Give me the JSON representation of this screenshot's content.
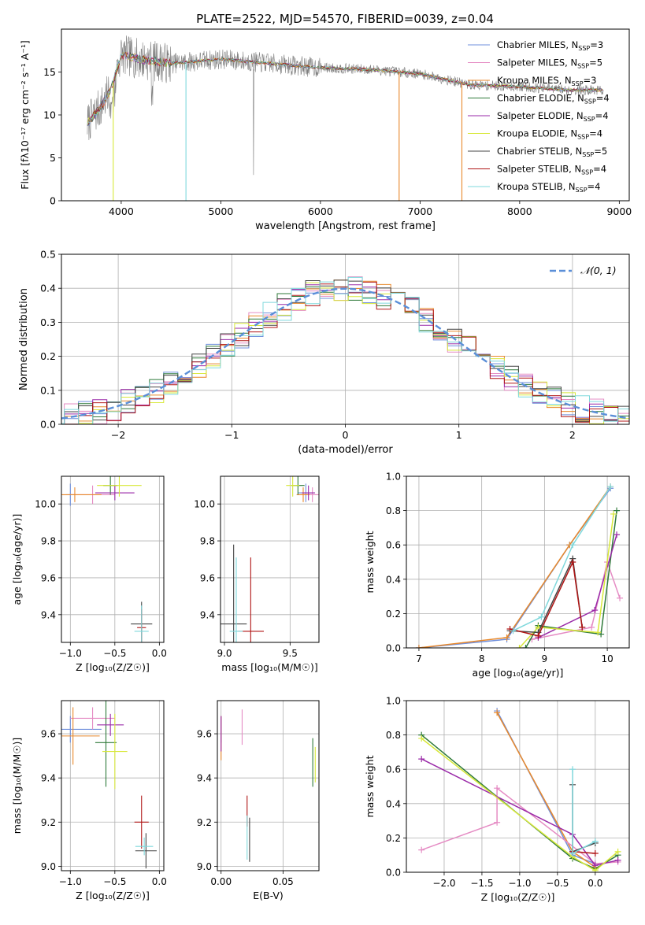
{
  "figure": {
    "title": "PLATE=2522, MJD=54570, FIBERID=0039, z=0.04"
  },
  "models": [
    {
      "name": "Chabrier MILES, N",
      "sub": "SSP",
      "suffix": "=3",
      "color": "#6f8fdc"
    },
    {
      "name": "Salpeter MILES, N",
      "sub": "SSP",
      "suffix": "=5",
      "color": "#e58cc4"
    },
    {
      "name": "Kroupa MILES, N",
      "sub": "SSP",
      "suffix": "=3",
      "color": "#e8892c"
    },
    {
      "name": "Chabrier ELODIE, N",
      "sub": "SSP",
      "suffix": "=4",
      "color": "#2f7a3a"
    },
    {
      "name": "Salpeter ELODIE, N",
      "sub": "SSP",
      "suffix": "=4",
      "color": "#9a2aa8"
    },
    {
      "name": "Kroupa ELODIE, N",
      "sub": "SSP",
      "suffix": "=4",
      "color": "#d8e83a"
    },
    {
      "name": "Chabrier STELIB, N",
      "sub": "SSP",
      "suffix": "=5",
      "color": "#444444"
    },
    {
      "name": "Salpeter STELIB, N",
      "sub": "SSP",
      "suffix": "=4",
      "color": "#b01515"
    },
    {
      "name": "Kroupa STELIB, N",
      "sub": "SSP",
      "suffix": "=4",
      "color": "#7fd8dc"
    }
  ],
  "chart_data": [
    {
      "id": "spectrum",
      "type": "line",
      "xlabel": "wavelength [Angstrom, rest frame]",
      "ylabel": "Flux [f",
      "ylabel_full": "Flux [fλ10⁻¹⁷ erg cm⁻² s⁻¹ A⁻¹]",
      "xlim": [
        3400,
        9100
      ],
      "ylim": [
        0,
        20
      ],
      "xticks": [
        4000,
        5000,
        6000,
        7000,
        8000,
        9000
      ],
      "yticks": [
        0,
        5,
        10,
        15
      ],
      "grid": false,
      "legend": "top-right",
      "x_start": 3660,
      "x_end": 8840,
      "series_envelope": [
        {
          "x": 3660,
          "y": 9
        },
        {
          "x": 3800,
          "y": 11
        },
        {
          "x": 3900,
          "y": 13
        },
        {
          "x": 4000,
          "y": 17
        },
        {
          "x": 4200,
          "y": 16.5
        },
        {
          "x": 4500,
          "y": 16
        },
        {
          "x": 5000,
          "y": 16.5
        },
        {
          "x": 5500,
          "y": 16
        },
        {
          "x": 6000,
          "y": 15.5
        },
        {
          "x": 6500,
          "y": 15.3
        },
        {
          "x": 7000,
          "y": 14.8
        },
        {
          "x": 7500,
          "y": 13.5
        },
        {
          "x": 8000,
          "y": 13.3
        },
        {
          "x": 8500,
          "y": 12.9
        },
        {
          "x": 8840,
          "y": 12.9
        }
      ]
    },
    {
      "id": "residuals",
      "type": "histogram",
      "xlabel": "(data-model)/error",
      "ylabel": "Normed distribution",
      "xlim": [
        -2.5,
        2.5
      ],
      "ylim": [
        0,
        0.5
      ],
      "xticks": [
        -2,
        -1,
        0,
        1,
        2
      ],
      "yticks": [
        0,
        0.1,
        0.2,
        0.3,
        0.4,
        0.5
      ],
      "grid": true,
      "legend": "top-right",
      "reference_label": "𝒩(0, 1)",
      "reference_color": "#5b8fd8",
      "bin_width": 0.125
    },
    {
      "id": "age-vs-Z",
      "type": "scatter",
      "xlabel": "Z [log₁₀(Z/Z☉)]",
      "ylabel": "age  [log₁₀(age/yr)]",
      "xlim": [
        -1.1,
        0.05
      ],
      "ylim": [
        9.25,
        10.15
      ],
      "xticks": [
        -1.0,
        -0.5,
        0.0
      ],
      "yticks": [
        9.4,
        9.6,
        9.8,
        10.0
      ],
      "grid": true,
      "points": [
        {
          "m": 0,
          "x": -1.0,
          "y": 10.05,
          "xerr": 0.05,
          "yerr": 0.06
        },
        {
          "m": 1,
          "x": -0.75,
          "y": 10.05,
          "xerr": 0.25,
          "yerr": 0.05
        },
        {
          "m": 2,
          "x": -0.95,
          "y": 10.05,
          "xerr": 0.3,
          "yerr": 0.04
        },
        {
          "m": 3,
          "x": -0.55,
          "y": 10.1,
          "xerr": 0.08,
          "yerr": 0.05
        },
        {
          "m": 4,
          "x": -0.5,
          "y": 10.06,
          "xerr": 0.22,
          "yerr": 0.04
        },
        {
          "m": 5,
          "x": -0.45,
          "y": 10.1,
          "xerr": 0.25,
          "yerr": 0.06
        },
        {
          "m": 6,
          "x": -0.2,
          "y": 9.35,
          "xerr": 0.12,
          "yerr": 0.12
        },
        {
          "m": 7,
          "x": -0.2,
          "y": 9.33,
          "xerr": 0.05,
          "yerr": 0.1
        },
        {
          "m": 8,
          "x": -0.2,
          "y": 9.31,
          "xerr": 0.08,
          "yerr": 0.14
        }
      ]
    },
    {
      "id": "age-vs-mass",
      "type": "scatter",
      "xlabel": "mass [log₁₀(M/M☉)]",
      "ylabel": "",
      "xlim": [
        8.97,
        9.72
      ],
      "ylim": [
        9.25,
        10.15
      ],
      "xticks": [
        9.0,
        9.5
      ],
      "yticks": [
        9.4,
        9.6,
        9.8,
        10.0
      ],
      "grid": true,
      "points": [
        {
          "m": 0,
          "x": 9.62,
          "y": 10.06,
          "xerr": 0.06,
          "yerr": 0.05
        },
        {
          "m": 1,
          "x": 9.67,
          "y": 10.05,
          "xerr": 0.08,
          "yerr": 0.04
        },
        {
          "m": 2,
          "x": 9.6,
          "y": 10.05,
          "xerr": 0.05,
          "yerr": 0.04
        },
        {
          "m": 3,
          "x": 9.56,
          "y": 10.1,
          "xerr": 0.05,
          "yerr": 0.05
        },
        {
          "m": 4,
          "x": 9.64,
          "y": 10.06,
          "xerr": 0.05,
          "yerr": 0.04
        },
        {
          "m": 5,
          "x": 9.52,
          "y": 10.1,
          "xerr": 0.05,
          "yerr": 0.06
        },
        {
          "m": 6,
          "x": 9.07,
          "y": 9.35,
          "xerr": 0.1,
          "yerr": 0.43
        },
        {
          "m": 7,
          "x": 9.2,
          "y": 9.31,
          "xerr": 0.1,
          "yerr": 0.4
        },
        {
          "m": 8,
          "x": 9.09,
          "y": 9.31,
          "xerr": 0.05,
          "yerr": 0.4
        }
      ]
    },
    {
      "id": "massweight-vs-age",
      "type": "line",
      "xlabel": "age  [log₁₀(age/yr)]",
      "ylabel": "mass weight",
      "xlim": [
        6.8,
        10.35
      ],
      "ylim": [
        0,
        1.0
      ],
      "xticks": [
        7,
        8,
        9,
        10
      ],
      "yticks": [
        0,
        0.2,
        0.4,
        0.6,
        0.8,
        1.0
      ],
      "grid": true,
      "series": [
        {
          "m": 0,
          "x": [
            7.0,
            8.4,
            9.4,
            10.05
          ],
          "y": [
            0.0,
            0.05,
            0.6,
            0.93
          ]
        },
        {
          "m": 2,
          "x": [
            7.0,
            8.4,
            9.4,
            10.05
          ],
          "y": [
            0.0,
            0.06,
            0.6,
            0.94
          ]
        },
        {
          "m": 1,
          "x": [
            8.8,
            9.75,
            10.0,
            10.2
          ],
          "y": [
            0.05,
            0.12,
            0.5,
            0.29
          ]
        },
        {
          "m": 3,
          "x": [
            8.7,
            8.9,
            9.9,
            10.15
          ],
          "y": [
            0.0,
            0.13,
            0.08,
            0.8
          ]
        },
        {
          "m": 4,
          "x": [
            8.9,
            9.8,
            10.15
          ],
          "y": [
            0.06,
            0.22,
            0.66
          ]
        },
        {
          "m": 5,
          "x": [
            8.6,
            8.9,
            9.85,
            10.1
          ],
          "y": [
            0.0,
            0.12,
            0.09,
            0.78
          ]
        },
        {
          "m": 6,
          "x": [
            8.45,
            8.9,
            9.45,
            9.6
          ],
          "y": [
            0.1,
            0.09,
            0.52,
            0.12
          ]
        },
        {
          "m": 7,
          "x": [
            8.45,
            8.9,
            9.45,
            9.6
          ],
          "y": [
            0.11,
            0.07,
            0.5,
            0.12
          ]
        },
        {
          "m": 8,
          "x": [
            8.5,
            8.95,
            9.45,
            10.05
          ],
          "y": [
            0.1,
            0.18,
            0.6,
            0.94
          ]
        }
      ]
    },
    {
      "id": "mass-vs-Z",
      "type": "scatter",
      "xlabel": "Z [log₁₀(Z/Z☉)]",
      "ylabel": "mass [log₁₀(M/M☉)]",
      "xlim": [
        -1.1,
        0.05
      ],
      "ylim": [
        8.98,
        9.75
      ],
      "xticks": [
        -1.0,
        -0.5,
        0.0
      ],
      "yticks": [
        9.0,
        9.2,
        9.4,
        9.6
      ],
      "grid": true,
      "points": [
        {
          "m": 0,
          "x": -1.0,
          "y": 9.62,
          "xerr": 0.35,
          "yerr": 0.06
        },
        {
          "m": 1,
          "x": -0.75,
          "y": 9.67,
          "xerr": 0.25,
          "yerr": 0.05
        },
        {
          "m": 2,
          "x": -0.97,
          "y": 9.59,
          "xerr": 0.3,
          "yerr": 0.13
        },
        {
          "m": 3,
          "x": -0.6,
          "y": 9.56,
          "xerr": 0.12,
          "yerr": 0.2
        },
        {
          "m": 4,
          "x": -0.55,
          "y": 9.64,
          "xerr": 0.15,
          "yerr": 0.05
        },
        {
          "m": 5,
          "x": -0.5,
          "y": 9.52,
          "xerr": 0.14,
          "yerr": 0.17
        },
        {
          "m": 6,
          "x": -0.15,
          "y": 9.07,
          "xerr": 0.12,
          "yerr": 0.08
        },
        {
          "m": 7,
          "x": -0.2,
          "y": 9.2,
          "xerr": 0.08,
          "yerr": 0.12
        },
        {
          "m": 8,
          "x": -0.17,
          "y": 9.09,
          "xerr": 0.1,
          "yerr": 0.04
        }
      ]
    },
    {
      "id": "mass-vs-EBV",
      "type": "scatter",
      "xlabel": "E(B-V)",
      "ylabel": "",
      "xlim": [
        -0.003,
        0.079
      ],
      "ylim": [
        8.98,
        9.75
      ],
      "xticks": [
        0.0,
        0.05
      ],
      "yticks": [
        9.0,
        9.2,
        9.4,
        9.6
      ],
      "grid": true,
      "points": [
        {
          "m": 0,
          "x": 0.0,
          "y": 9.62,
          "xerr": 0,
          "yerr": 0.06
        },
        {
          "m": 1,
          "x": 0.017,
          "y": 9.63,
          "xerr": 0,
          "yerr": 0.08
        },
        {
          "m": 2,
          "x": 0.0,
          "y": 9.58,
          "xerr": 0,
          "yerr": 0.1
        },
        {
          "m": 3,
          "x": 0.074,
          "y": 9.47,
          "xerr": 0,
          "yerr": 0.11
        },
        {
          "m": 4,
          "x": 0.0,
          "y": 9.6,
          "xerr": 0,
          "yerr": 0.08
        },
        {
          "m": 5,
          "x": 0.076,
          "y": 9.46,
          "xerr": 0,
          "yerr": 0.08
        },
        {
          "m": 6,
          "x": 0.023,
          "y": 9.12,
          "xerr": 0,
          "yerr": 0.1
        },
        {
          "m": 7,
          "x": 0.021,
          "y": 9.25,
          "xerr": 0,
          "yerr": 0.07
        },
        {
          "m": 8,
          "x": 0.021,
          "y": 9.13,
          "xerr": 0,
          "yerr": 0.1
        }
      ]
    },
    {
      "id": "massweight-vs-Z",
      "type": "line",
      "xlabel": "Z [log₁₀(Z/Z☉)]",
      "ylabel": "mass weight",
      "xlim": [
        -2.5,
        0.45
      ],
      "ylim": [
        0,
        1.0
      ],
      "xticks": [
        -2.0,
        -1.5,
        -1.0,
        -0.5,
        0.0
      ],
      "yticks": [
        0,
        0.2,
        0.4,
        0.6,
        0.8,
        1.0
      ],
      "grid": true,
      "series": [
        {
          "m": 0,
          "x": [
            -1.3,
            -0.3,
            0.0
          ],
          "y": [
            0.94,
            0.1,
            0.05
          ]
        },
        {
          "m": 2,
          "x": [
            -1.3,
            -0.3,
            0.0
          ],
          "y": [
            0.93,
            0.12,
            0.03
          ]
        },
        {
          "m": 1,
          "x": [
            -2.3,
            -1.3,
            -1.3,
            0.0,
            0.3
          ],
          "y": [
            0.13,
            0.29,
            0.49,
            0.05,
            0.06
          ]
        },
        {
          "m": 3,
          "x": [
            -2.3,
            -0.3,
            0.0,
            0.3
          ],
          "y": [
            0.8,
            0.08,
            0.02,
            0.1
          ]
        },
        {
          "m": 4,
          "x": [
            -2.3,
            -0.3,
            0.0,
            0.3
          ],
          "y": [
            0.66,
            0.22,
            0.04,
            0.07
          ]
        },
        {
          "m": 5,
          "x": [
            -2.3,
            -0.3,
            0.0,
            0.3
          ],
          "y": [
            0.78,
            0.09,
            0.01,
            0.12
          ]
        },
        {
          "m": 6,
          "x": [
            -0.3,
            -0.3,
            0.0
          ],
          "y": [
            0.51,
            0.12,
            0.17
          ]
        },
        {
          "m": 7,
          "x": [
            -0.3,
            0.0
          ],
          "y": [
            0.12,
            0.11
          ]
        },
        {
          "m": 8,
          "x": [
            -0.3,
            -0.3,
            0.0
          ],
          "y": [
            0.6,
            0.11,
            0.18
          ]
        }
      ]
    }
  ]
}
